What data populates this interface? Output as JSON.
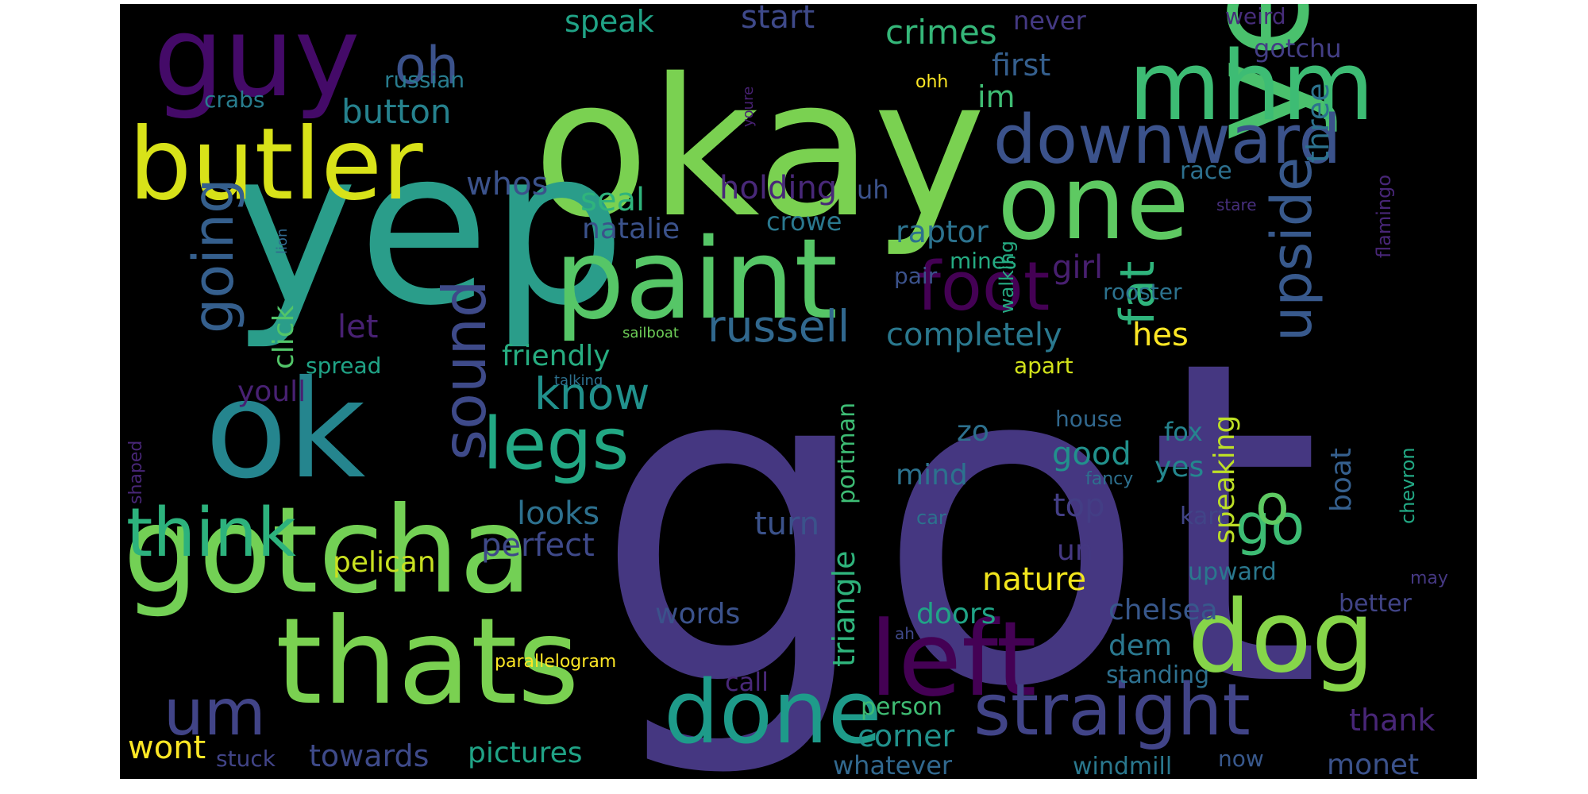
{
  "cloud": {
    "background": "#000000",
    "words": [
      {
        "text": "got",
        "color": "#453781"
      },
      {
        "text": "okay",
        "color": "#7ad151"
      },
      {
        "text": "yep",
        "color": "#2a9d8a"
      },
      {
        "text": "yeah",
        "color": "#4ac16d"
      },
      {
        "text": "gotcha",
        "color": "#73d055"
      },
      {
        "text": "thats",
        "color": "#7ad151"
      },
      {
        "text": "ok",
        "color": "#25858e"
      },
      {
        "text": "paint",
        "color": "#56c667"
      },
      {
        "text": "mhm",
        "color": "#3dbc74"
      },
      {
        "text": "butler",
        "color": "#d8e219"
      },
      {
        "text": "guy",
        "color": "#440a68"
      },
      {
        "text": "one",
        "color": "#5ec962"
      },
      {
        "text": "left",
        "color": "#440154"
      },
      {
        "text": "dog",
        "color": "#86d549"
      },
      {
        "text": "done",
        "color": "#1e9b8a"
      },
      {
        "text": "downward",
        "color": "#3b528b"
      },
      {
        "text": "straight",
        "color": "#414487"
      },
      {
        "text": "upside",
        "color": "#38598c"
      },
      {
        "text": "foot",
        "color": "#440154"
      },
      {
        "text": "legs",
        "color": "#22a884"
      },
      {
        "text": "sound",
        "color": "#3e4a89"
      },
      {
        "text": "think",
        "color": "#2db27d"
      },
      {
        "text": "going",
        "color": "#355f8d"
      },
      {
        "text": "go",
        "color": "#3dbc74"
      },
      {
        "text": "fat",
        "color": "#2fb47c"
      },
      {
        "text": "um",
        "color": "#414487"
      },
      {
        "text": "oh",
        "color": "#3b528b"
      },
      {
        "text": "russell",
        "color": "#31688e"
      },
      {
        "text": "know",
        "color": "#21918c"
      },
      {
        "text": "o",
        "color": "#5ec962"
      },
      {
        "text": "crimes",
        "color": "#35b779"
      },
      {
        "text": "speak",
        "color": "#20a386"
      },
      {
        "text": "start",
        "color": "#3e4989"
      },
      {
        "text": "never",
        "color": "#443983"
      },
      {
        "text": "weird",
        "color": "#472d7b"
      },
      {
        "text": "first",
        "color": "#355f8d"
      },
      {
        "text": "gotchu",
        "color": "#433e85"
      },
      {
        "text": "russian",
        "color": "#287c8e"
      },
      {
        "text": "crabs",
        "color": "#287d8e"
      },
      {
        "text": "button",
        "color": "#26828e"
      },
      {
        "text": "im",
        "color": "#3fbc73"
      },
      {
        "text": "ohh",
        "color": "#fde725"
      },
      {
        "text": "youre",
        "color": "#482173"
      },
      {
        "text": "whos",
        "color": "#3b528b"
      },
      {
        "text": "seal",
        "color": "#2fb47c"
      },
      {
        "text": "holding",
        "color": "#482878"
      },
      {
        "text": "uh",
        "color": "#3b528b"
      },
      {
        "text": "three",
        "color": "#2c728e"
      },
      {
        "text": "flamingo",
        "color": "#482677"
      },
      {
        "text": "race",
        "color": "#2d708e"
      },
      {
        "text": "stare",
        "color": "#472f7d"
      },
      {
        "text": "natalie",
        "color": "#3b528b"
      },
      {
        "text": "crowe",
        "color": "#2a788e"
      },
      {
        "text": "raptor",
        "color": "#2c728e"
      },
      {
        "text": "lion",
        "color": "#31688e"
      },
      {
        "text": "girl",
        "color": "#481f70"
      },
      {
        "text": "mines",
        "color": "#25ab82"
      },
      {
        "text": "pair",
        "color": "#3b528b"
      },
      {
        "text": "walking",
        "color": "#25ab82"
      },
      {
        "text": "rooster",
        "color": "#2c728e"
      },
      {
        "text": "click",
        "color": "#52c569"
      },
      {
        "text": "let",
        "color": "#482173"
      },
      {
        "text": "completely",
        "color": "#2a788e"
      },
      {
        "text": "hes",
        "color": "#fde725"
      },
      {
        "text": "sailboat",
        "color": "#6ece58"
      },
      {
        "text": "friendly",
        "color": "#27ad81"
      },
      {
        "text": "spread",
        "color": "#20a386"
      },
      {
        "text": "talking",
        "color": "#2d708e"
      },
      {
        "text": "apart",
        "color": "#d2e21b"
      },
      {
        "text": "portman",
        "color": "#3dbc74"
      },
      {
        "text": "speaking",
        "color": "#bddf26"
      },
      {
        "text": "youll",
        "color": "#482173"
      },
      {
        "text": "house",
        "color": "#31688e"
      },
      {
        "text": "shaped",
        "color": "#482677"
      },
      {
        "text": "zo",
        "color": "#2d708e"
      },
      {
        "text": "fox",
        "color": "#25838e"
      },
      {
        "text": "good",
        "color": "#21918c"
      },
      {
        "text": "boat",
        "color": "#355f8d"
      },
      {
        "text": "chevron",
        "color": "#22a884"
      },
      {
        "text": "mind",
        "color": "#2c728e"
      },
      {
        "text": "yes",
        "color": "#24878e"
      },
      {
        "text": "fancy",
        "color": "#2d708e"
      },
      {
        "text": "looks",
        "color": "#2d708e"
      },
      {
        "text": "top",
        "color": "#433e85"
      },
      {
        "text": "car",
        "color": "#2c728e"
      },
      {
        "text": "kart",
        "color": "#414487"
      },
      {
        "text": "turn",
        "color": "#3b528b"
      },
      {
        "text": "perfect",
        "color": "#3e4989"
      },
      {
        "text": "triangle",
        "color": "#2fb47c"
      },
      {
        "text": "un",
        "color": "#453882"
      },
      {
        "text": "pelican",
        "color": "#c8e020"
      },
      {
        "text": "nature",
        "color": "#f1e51d"
      },
      {
        "text": "doors",
        "color": "#20a486"
      },
      {
        "text": "chelsea",
        "color": "#38588c"
      },
      {
        "text": "upward",
        "color": "#2a788e"
      },
      {
        "text": "may",
        "color": "#453882"
      },
      {
        "text": "words",
        "color": "#3b528b"
      },
      {
        "text": "better",
        "color": "#414487"
      },
      {
        "text": "dem",
        "color": "#2a788e"
      },
      {
        "text": "ah",
        "color": "#3f4889"
      },
      {
        "text": "parallelogram",
        "color": "#fde725"
      },
      {
        "text": "call",
        "color": "#482878"
      },
      {
        "text": "standing",
        "color": "#2d708e"
      },
      {
        "text": "person",
        "color": "#3fbc73"
      },
      {
        "text": "corner",
        "color": "#21918c"
      },
      {
        "text": "thank",
        "color": "#482677"
      },
      {
        "text": "wont",
        "color": "#fde725"
      },
      {
        "text": "stuck",
        "color": "#414487"
      },
      {
        "text": "towards",
        "color": "#3e4a89"
      },
      {
        "text": "pictures",
        "color": "#20a386"
      },
      {
        "text": "whatever",
        "color": "#31688e"
      },
      {
        "text": "windmill",
        "color": "#2a788e"
      },
      {
        "text": "now",
        "color": "#38588c"
      },
      {
        "text": "monet",
        "color": "#3b528b"
      }
    ]
  }
}
